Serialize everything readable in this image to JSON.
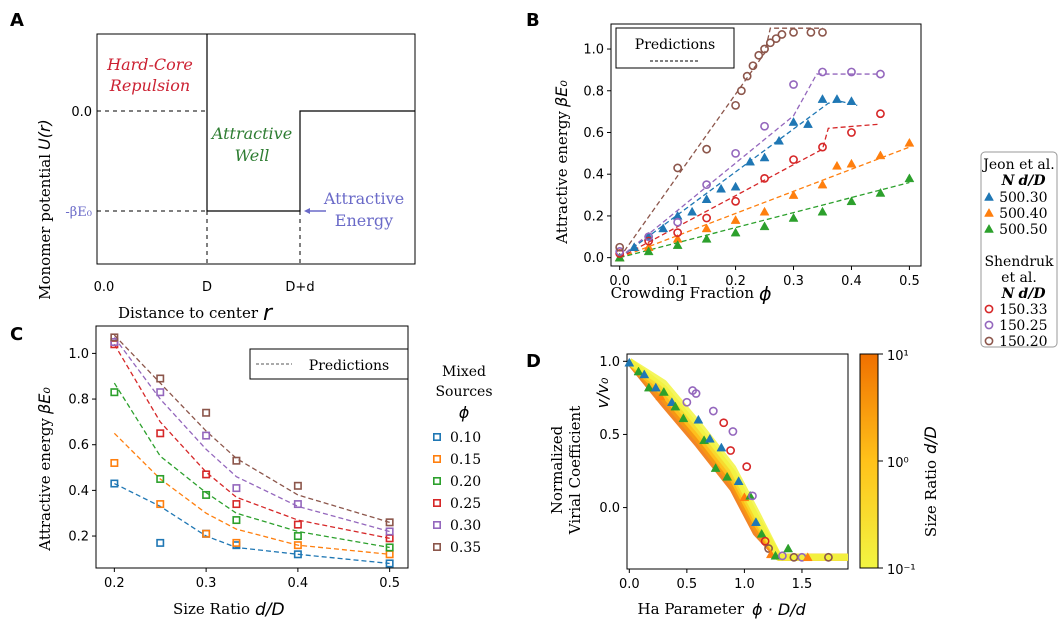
{
  "panels": {
    "A": "A",
    "B": "B",
    "C": "C",
    "D": "D"
  },
  "panel_a": {
    "xlabel": "Distance to center",
    "xlabel_sym": "r",
    "ylabel": "Monomer potential",
    "ylabel_sym": "U(r)",
    "xticks": [
      "0.0",
      "D",
      "D+d"
    ],
    "yticks": [
      "0.0",
      "-βE₀"
    ],
    "ann_hardcore_1": "Hard-Core",
    "ann_hardcore_2": "Repulsion",
    "ann_well_1": "Attractive",
    "ann_well_2": "Well",
    "ann_energy_1": "Attractive",
    "ann_energy_2": "Energy",
    "colors": {
      "hardcore": "#cc2233",
      "well": "#2e7d32",
      "energy": "#6a6ac8"
    }
  },
  "shared_legend": {
    "title1": "Jeon et al.",
    "title2": "Shendruk",
    "title2b": "et al.",
    "col_n": "N",
    "col_r": "d/D",
    "entries": [
      {
        "n": "50",
        "r": "0.30",
        "marker": "triangle",
        "color": "#1f77b4"
      },
      {
        "n": "50",
        "r": "0.40",
        "marker": "triangle",
        "color": "#ff7f0e"
      },
      {
        "n": "50",
        "r": "0.50",
        "marker": "triangle",
        "color": "#2ca02c"
      },
      {
        "n": "15",
        "r": "0.33",
        "marker": "circle",
        "color": "#d62728"
      },
      {
        "n": "15",
        "r": "0.25",
        "marker": "circle",
        "color": "#9467bd"
      },
      {
        "n": "15",
        "r": "0.20",
        "marker": "circle",
        "color": "#8c564b"
      }
    ]
  },
  "chart_data": [
    {
      "panel": "B",
      "type": "scatter",
      "xlabel": "Crowding Fraction",
      "xlabel_sym": "ϕ",
      "ylabel": "Attractive energy",
      "ylabel_sym": "βE₀",
      "xlim": [
        -0.015,
        0.52
      ],
      "ylim": [
        -0.04,
        1.12
      ],
      "xticks": [
        "0.0",
        "0.1",
        "0.2",
        "0.3",
        "0.4",
        "0.5"
      ],
      "yticks": [
        "0.0",
        "0.2",
        "0.4",
        "0.6",
        "0.8",
        "1.0"
      ],
      "legend_label": "Predictions",
      "series": [
        {
          "color": "#1f77b4",
          "marker": "triangle",
          "x": [
            0.0,
            0.025,
            0.05,
            0.075,
            0.1,
            0.125,
            0.15,
            0.175,
            0.2,
            0.225,
            0.25,
            0.275,
            0.3,
            0.325,
            0.35,
            0.375,
            0.4
          ],
          "y": [
            0.0,
            0.05,
            0.1,
            0.14,
            0.2,
            0.22,
            0.28,
            0.33,
            0.34,
            0.46,
            0.48,
            0.56,
            0.65,
            0.64,
            0.76,
            0.76,
            0.75
          ],
          "pred_x": [
            0.0,
            0.36,
            0.38,
            0.41
          ],
          "pred_y": [
            0.0,
            0.74,
            0.75,
            0.73
          ]
        },
        {
          "color": "#ff7f0e",
          "marker": "triangle",
          "x": [
            0.0,
            0.05,
            0.1,
            0.15,
            0.2,
            0.25,
            0.3,
            0.35,
            0.375,
            0.4,
            0.45,
            0.5
          ],
          "y": [
            0.0,
            0.05,
            0.09,
            0.14,
            0.18,
            0.22,
            0.3,
            0.35,
            0.44,
            0.45,
            0.49,
            0.55
          ],
          "pred_x": [
            0.0,
            0.5
          ],
          "pred_y": [
            0.0,
            0.53
          ]
        },
        {
          "color": "#2ca02c",
          "marker": "triangle",
          "x": [
            0.0,
            0.05,
            0.1,
            0.15,
            0.2,
            0.25,
            0.3,
            0.35,
            0.4,
            0.45,
            0.5
          ],
          "y": [
            0.0,
            0.03,
            0.06,
            0.09,
            0.12,
            0.15,
            0.19,
            0.22,
            0.27,
            0.31,
            0.38
          ],
          "pred_x": [
            0.0,
            0.5
          ],
          "pred_y": [
            0.0,
            0.36
          ]
        },
        {
          "color": "#d62728",
          "marker": "circle",
          "x": [
            0.0,
            0.05,
            0.1,
            0.15,
            0.2,
            0.25,
            0.3,
            0.35,
            0.4,
            0.45
          ],
          "y": [
            0.02,
            0.08,
            0.12,
            0.19,
            0.27,
            0.38,
            0.47,
            0.53,
            0.6,
            0.69
          ],
          "pred_x": [
            0.0,
            0.35,
            0.36,
            0.45
          ],
          "pred_y": [
            0.0,
            0.52,
            0.62,
            0.64
          ]
        },
        {
          "color": "#9467bd",
          "marker": "circle",
          "x": [
            0.0,
            0.05,
            0.1,
            0.15,
            0.2,
            0.25,
            0.3,
            0.35,
            0.4,
            0.45
          ],
          "y": [
            0.03,
            0.1,
            0.17,
            0.35,
            0.5,
            0.63,
            0.83,
            0.89,
            0.89,
            0.88
          ],
          "pred_x": [
            0.0,
            0.3,
            0.34,
            0.45
          ],
          "pred_y": [
            0.0,
            0.68,
            0.88,
            0.88
          ]
        },
        {
          "color": "#8c564b",
          "marker": "circle",
          "x": [
            0.0,
            0.1,
            0.15,
            0.2,
            0.21,
            0.22,
            0.23,
            0.24,
            0.25,
            0.26,
            0.27,
            0.28,
            0.3,
            0.33,
            0.35
          ],
          "y": [
            0.05,
            0.43,
            0.52,
            0.73,
            0.8,
            0.87,
            0.92,
            0.97,
            1.0,
            1.03,
            1.05,
            1.07,
            1.08,
            1.08,
            1.08
          ],
          "pred_x": [
            0.0,
            0.25,
            0.26,
            0.35
          ],
          "pred_y": [
            0.0,
            0.98,
            1.1,
            1.1
          ]
        }
      ]
    },
    {
      "panel": "C",
      "type": "scatter",
      "xlabel": "Size Ratio",
      "xlabel_sym": "d/D",
      "ylabel": "Attractive energy",
      "ylabel_sym": "βE₀",
      "xlim": [
        0.18,
        0.52
      ],
      "ylim": [
        0.06,
        1.12
      ],
      "xticks": [
        "0.2",
        "0.3",
        "0.4",
        "0.5"
      ],
      "yticks": [
        "0.2",
        "0.4",
        "0.6",
        "0.8",
        "1.0"
      ],
      "legend_label": "Predictions",
      "legend_title1": "Mixed",
      "legend_title2": "Sources",
      "legend_title3": "ϕ",
      "categories_x": [
        0.2,
        0.25,
        0.3,
        0.333,
        0.4,
        0.5
      ],
      "series": [
        {
          "name": "0.10",
          "color": "#1f77b4",
          "y": [
            0.43,
            0.17,
            0.21,
            0.16,
            0.12,
            0.08
          ],
          "pred": [
            0.43,
            0.33,
            0.2,
            0.15,
            0.12,
            0.08
          ]
        },
        {
          "name": "0.15",
          "color": "#ff7f0e",
          "y": [
            0.52,
            0.34,
            0.21,
            0.17,
            0.16,
            0.12
          ],
          "pred": [
            0.65,
            0.45,
            0.3,
            0.23,
            0.16,
            0.12
          ]
        },
        {
          "name": "0.20",
          "color": "#2ca02c",
          "y": [
            0.83,
            0.45,
            0.38,
            0.27,
            0.2,
            0.15
          ],
          "pred": [
            0.87,
            0.55,
            0.39,
            0.3,
            0.22,
            0.15
          ]
        },
        {
          "name": "0.25",
          "color": "#d62728",
          "y": [
            1.04,
            0.65,
            0.47,
            0.34,
            0.25,
            0.19
          ],
          "pred": [
            1.04,
            0.7,
            0.48,
            0.37,
            0.27,
            0.19
          ]
        },
        {
          "name": "0.30",
          "color": "#9467bd",
          "y": [
            1.05,
            0.83,
            0.64,
            0.41,
            0.34,
            0.22
          ],
          "pred": [
            1.07,
            0.8,
            0.58,
            0.46,
            0.33,
            0.22
          ]
        },
        {
          "name": "0.35",
          "color": "#8c564b",
          "y": [
            1.07,
            0.89,
            0.74,
            0.53,
            0.42,
            0.26
          ],
          "pred": [
            1.08,
            0.87,
            0.66,
            0.54,
            0.38,
            0.26
          ]
        }
      ]
    },
    {
      "panel": "D",
      "type": "scatter",
      "xlabel": "Ha Parameter",
      "xlabel_sym": "ϕ · D/d",
      "ylabel1": "Normalized",
      "ylabel2": "Virial Coefficient",
      "ylabel_sym": "v/v₀",
      "xlim": [
        -0.02,
        1.9
      ],
      "ylim": [
        -0.42,
        1.05
      ],
      "xticks": [
        "0.0",
        "0.5",
        "1.0",
        "1.5"
      ],
      "yticks": [
        "0.0",
        "0.5",
        "1.0"
      ],
      "colorbar_label": "Size Ratio",
      "colorbar_sym": "d/D",
      "colorbar_ticks": [
        "10¹",
        "10⁰",
        "10⁻¹"
      ],
      "colorbar_range": [
        0.1,
        10
      ],
      "curve_x": [
        0.0,
        0.3,
        0.6,
        0.9,
        1.1,
        1.3,
        1.9
      ],
      "curve_y": [
        1.0,
        0.78,
        0.5,
        0.2,
        -0.1,
        -0.34,
        -0.34
      ],
      "points": [
        {
          "x": 0.0,
          "y": 0.99,
          "c": "#1f77b4",
          "m": "triangle"
        },
        {
          "x": 0.08,
          "y": 0.93,
          "c": "#2ca02c",
          "m": "triangle"
        },
        {
          "x": 0.13,
          "y": 0.91,
          "c": "#1f77b4",
          "m": "triangle"
        },
        {
          "x": 0.17,
          "y": 0.82,
          "c": "#2ca02c",
          "m": "triangle"
        },
        {
          "x": 0.23,
          "y": 0.82,
          "c": "#1f77b4",
          "m": "triangle"
        },
        {
          "x": 0.27,
          "y": 0.76,
          "c": "#ff7f0e",
          "m": "triangle"
        },
        {
          "x": 0.3,
          "y": 0.79,
          "c": "#2ca02c",
          "m": "triangle"
        },
        {
          "x": 0.37,
          "y": 0.72,
          "c": "#1f77b4",
          "m": "triangle"
        },
        {
          "x": 0.4,
          "y": 0.69,
          "c": "#2ca02c",
          "m": "triangle"
        },
        {
          "x": 0.47,
          "y": 0.61,
          "c": "#2ca02c",
          "m": "triangle"
        },
        {
          "x": 0.5,
          "y": 0.72,
          "c": "#9467bd",
          "m": "circle"
        },
        {
          "x": 0.55,
          "y": 0.8,
          "c": "#9467bd",
          "m": "circle"
        },
        {
          "x": 0.58,
          "y": 0.78,
          "c": "#9467bd",
          "m": "circle"
        },
        {
          "x": 0.6,
          "y": 0.6,
          "c": "#1f77b4",
          "m": "triangle"
        },
        {
          "x": 0.65,
          "y": 0.46,
          "c": "#2ca02c",
          "m": "triangle"
        },
        {
          "x": 0.7,
          "y": 0.47,
          "c": "#1f77b4",
          "m": "triangle"
        },
        {
          "x": 0.73,
          "y": 0.66,
          "c": "#9467bd",
          "m": "circle"
        },
        {
          "x": 0.75,
          "y": 0.27,
          "c": "#2ca02c",
          "m": "triangle"
        },
        {
          "x": 0.8,
          "y": 0.41,
          "c": "#1f77b4",
          "m": "triangle"
        },
        {
          "x": 0.82,
          "y": 0.58,
          "c": "#d62728",
          "m": "circle"
        },
        {
          "x": 0.85,
          "y": 0.21,
          "c": "#2ca02c",
          "m": "triangle"
        },
        {
          "x": 0.88,
          "y": 0.39,
          "c": "#d62728",
          "m": "circle"
        },
        {
          "x": 0.9,
          "y": 0.52,
          "c": "#9467bd",
          "m": "circle"
        },
        {
          "x": 0.95,
          "y": 0.18,
          "c": "#1f77b4",
          "m": "triangle"
        },
        {
          "x": 1.0,
          "y": 0.07,
          "c": "#ff7f0e",
          "m": "triangle"
        },
        {
          "x": 1.02,
          "y": 0.28,
          "c": "#d62728",
          "m": "circle"
        },
        {
          "x": 1.05,
          "y": 0.08,
          "c": "#2ca02c",
          "m": "triangle"
        },
        {
          "x": 1.07,
          "y": 0.08,
          "c": "#9467bd",
          "m": "circle"
        },
        {
          "x": 1.1,
          "y": -0.1,
          "c": "#1f77b4",
          "m": "triangle"
        },
        {
          "x": 1.15,
          "y": -0.18,
          "c": "#2ca02c",
          "m": "triangle"
        },
        {
          "x": 1.18,
          "y": -0.23,
          "c": "#d62728",
          "m": "circle"
        },
        {
          "x": 1.21,
          "y": -0.28,
          "c": "#8c564b",
          "m": "circle"
        },
        {
          "x": 1.23,
          "y": -0.32,
          "c": "#ff7f0e",
          "m": "triangle"
        },
        {
          "x": 1.27,
          "y": -0.33,
          "c": "#2ca02c",
          "m": "triangle"
        },
        {
          "x": 1.33,
          "y": -0.33,
          "c": "#9467bd",
          "m": "circle"
        },
        {
          "x": 1.38,
          "y": -0.28,
          "c": "#2ca02c",
          "m": "triangle"
        },
        {
          "x": 1.43,
          "y": -0.34,
          "c": "#8c564b",
          "m": "circle"
        },
        {
          "x": 1.5,
          "y": -0.34,
          "c": "#9467bd",
          "m": "circle"
        },
        {
          "x": 1.55,
          "y": -0.34,
          "c": "#ff7f0e",
          "m": "triangle"
        },
        {
          "x": 1.73,
          "y": -0.34,
          "c": "#8c564b",
          "m": "circle"
        }
      ]
    }
  ]
}
